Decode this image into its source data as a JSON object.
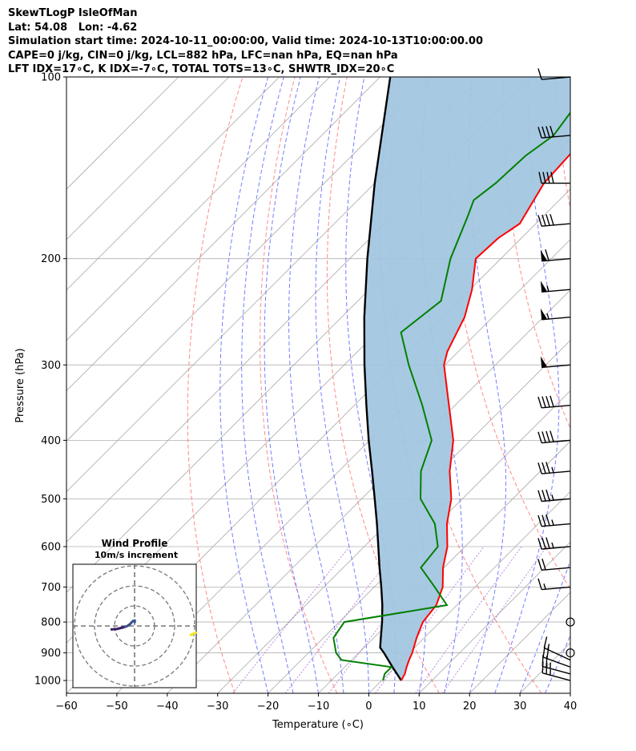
{
  "header": {
    "line1": "SkewTLogP IsleOfMan",
    "line2": "Lat: 54.08   Lon: -4.62",
    "line3": "Simulation start time: 2024-10-11_00:00:00, Valid time: 2024-10-13T10:00:00.00",
    "line4": "CAPE=0 j/kg, CIN=0 j/kg, LCL=882 hPa, LFC=nan hPa, EQ=nan hPa",
    "line5": "LFT IDX=17∘C, K IDX=-7∘C, TOTAL TOTS=13∘C, SHWTR_IDX=20∘C"
  },
  "chart_data": {
    "type": "line",
    "subtype": "skew-t log-p",
    "xlabel": "Temperature (∘C)",
    "ylabel": "Pressure (hPa)",
    "xlim": [
      -60,
      40
    ],
    "ylim": [
      1050,
      100
    ],
    "yscale": "log",
    "x_ticks": [
      -60,
      -50,
      -40,
      -30,
      -20,
      -10,
      0,
      10,
      20,
      30,
      40
    ],
    "x_tick_labels": [
      "−60",
      "−50",
      "−40",
      "−30",
      "−20",
      "−10",
      "0",
      "10",
      "20",
      "30",
      "40"
    ],
    "y_ticks": [
      1000,
      900,
      800,
      700,
      600,
      500,
      400,
      300,
      200,
      100
    ],
    "y_tick_labels": [
      "1000",
      "900",
      "800",
      "700",
      "600",
      "500",
      "400",
      "300",
      "200",
      "100"
    ],
    "grid": true,
    "colors": {
      "temperature": "#ff0000",
      "dewpoint": "#008000",
      "parcel": "#000000",
      "cape_shading": "#a3c6e0",
      "dry_adiabat": "#ff6b6b",
      "moist_adiabat": "#5b66ff",
      "mixing_ratio": "#9b59d0"
    },
    "temperature": {
      "p": [
        1000,
        975,
        950,
        925,
        900,
        850,
        800,
        750,
        700,
        650,
        600,
        550,
        500,
        450,
        400,
        350,
        300,
        285,
        250,
        225,
        200,
        185,
        175,
        150,
        125,
        110,
        100
      ],
      "t": [
        3.9,
        3.3,
        2.3,
        1.4,
        0.6,
        -1.5,
        -3.4,
        -4.1,
        -6.4,
        -10.2,
        -13.5,
        -18.1,
        -22.2,
        -28.0,
        -33.4,
        -41.2,
        -50.2,
        -52.2,
        -55.6,
        -59.6,
        -65.0,
        -64.6,
        -63.2,
        -66.4,
        -67.3,
        -67.2,
        -66.0
      ]
    },
    "dewpoint": {
      "p": [
        1000,
        975,
        950,
        925,
        900,
        850,
        800,
        750,
        700,
        650,
        600,
        550,
        500,
        450,
        400,
        350,
        300,
        265,
        235,
        200,
        170,
        160,
        150,
        135,
        125,
        100
      ],
      "td": [
        0.3,
        -0.7,
        -0.7,
        -12.0,
        -14.5,
        -18.0,
        -19.0,
        -2.0,
        -8.0,
        -14.6,
        -15.4,
        -20.5,
        -28.3,
        -33.7,
        -37.7,
        -46.5,
        -57.2,
        -65.2,
        -63.5,
        -70.0,
        -75.0,
        -77.0,
        -76.0,
        -75.5,
        -74.0,
        -77.0
      ]
    },
    "parcel": {
      "p": [
        1000,
        950,
        900,
        882,
        850,
        800,
        750,
        700,
        650,
        600,
        550,
        500,
        450,
        400,
        350,
        300,
        250,
        200,
        150,
        100
      ],
      "t": [
        3.9,
        -0.5,
        -5.0,
        -6.8,
        -8.6,
        -11.5,
        -14.8,
        -18.6,
        -22.8,
        -27.2,
        -32.0,
        -37.4,
        -43.4,
        -50.2,
        -57.6,
        -66.0,
        -75.5,
        -86.5,
        -100.0,
        -118.0
      ]
    },
    "wind_barbs": {
      "units": "kt",
      "p": [
        1000,
        975,
        950,
        925,
        900,
        800,
        700,
        650,
        600,
        550,
        500,
        450,
        400,
        350,
        300,
        250,
        225,
        200,
        175,
        150,
        125,
        100
      ],
      "speed": [
        25,
        25,
        20,
        15,
        0,
        0,
        15,
        20,
        35,
        35,
        35,
        35,
        40,
        40,
        50,
        55,
        55,
        60,
        40,
        40,
        40,
        10
      ],
      "direction": [
        285,
        285,
        290,
        295,
        0,
        0,
        265,
        265,
        265,
        265,
        265,
        265,
        265,
        265,
        265,
        265,
        265,
        265,
        265,
        270,
        265,
        265
      ]
    }
  },
  "hodograph": {
    "title_line1": "Wind Profile",
    "title_line2": "10m/s increment",
    "u": [
      -11.5,
      -9.3,
      -8.0,
      -6.5,
      -5.6,
      -4.6,
      -3.4,
      -2.2,
      -1.3,
      -0.6,
      -0.1,
      0.1,
      0.1
    ],
    "v": [
      -1.7,
      -1.6,
      -1.3,
      -0.9,
      -0.7,
      -0.4,
      0.1,
      1.0,
      2.0,
      2.6,
      2.3,
      2.7,
      1.9
    ],
    "extra_segment": {
      "u": [
        9.5,
        10.4
      ],
      "v": [
        -1.5,
        -2.0
      ],
      "color": "#f5e51a"
    },
    "line_colors": [
      "#3b1f62",
      "#3d4d8b",
      "#365f97"
    ]
  }
}
